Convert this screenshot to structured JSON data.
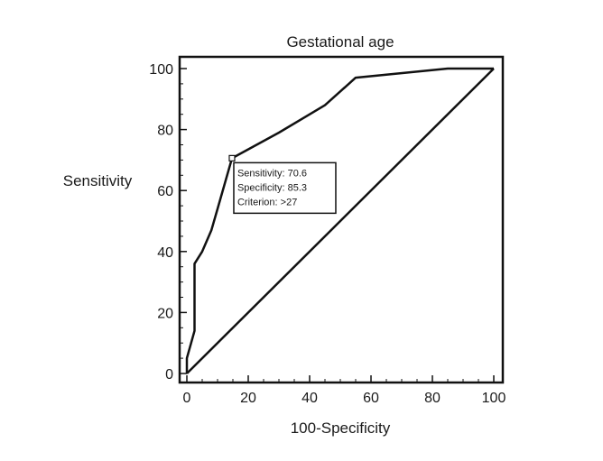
{
  "chart_data": {
    "type": "line",
    "title": "Gestational age",
    "xlabel": "100-Specificity",
    "ylabel": "Sensitivity",
    "xlim": [
      0,
      100
    ],
    "ylim": [
      0,
      100
    ],
    "xticks": [
      "0",
      "20",
      "40",
      "60",
      "80",
      "100"
    ],
    "yticks": [
      "0",
      "20",
      "40",
      "60",
      "80",
      "100"
    ],
    "grid": false,
    "series": [
      {
        "role": "roc-curve",
        "x": [
          0,
          0,
          2.5,
          2.5,
          5,
          8,
          10,
          14.7,
          30,
          45,
          55,
          85,
          100
        ],
        "y": [
          0,
          5,
          14,
          36,
          40,
          47,
          54,
          70.6,
          79,
          88,
          97,
          100,
          100
        ]
      },
      {
        "role": "reference-diagonal",
        "x": [
          0,
          100
        ],
        "y": [
          0,
          100
        ]
      }
    ],
    "annotation": {
      "point": {
        "x": 14.7,
        "y": 70.6
      },
      "lines": [
        "Sensitivity: 70.6",
        "Specificity: 85.3",
        "Criterion: >27"
      ]
    }
  }
}
